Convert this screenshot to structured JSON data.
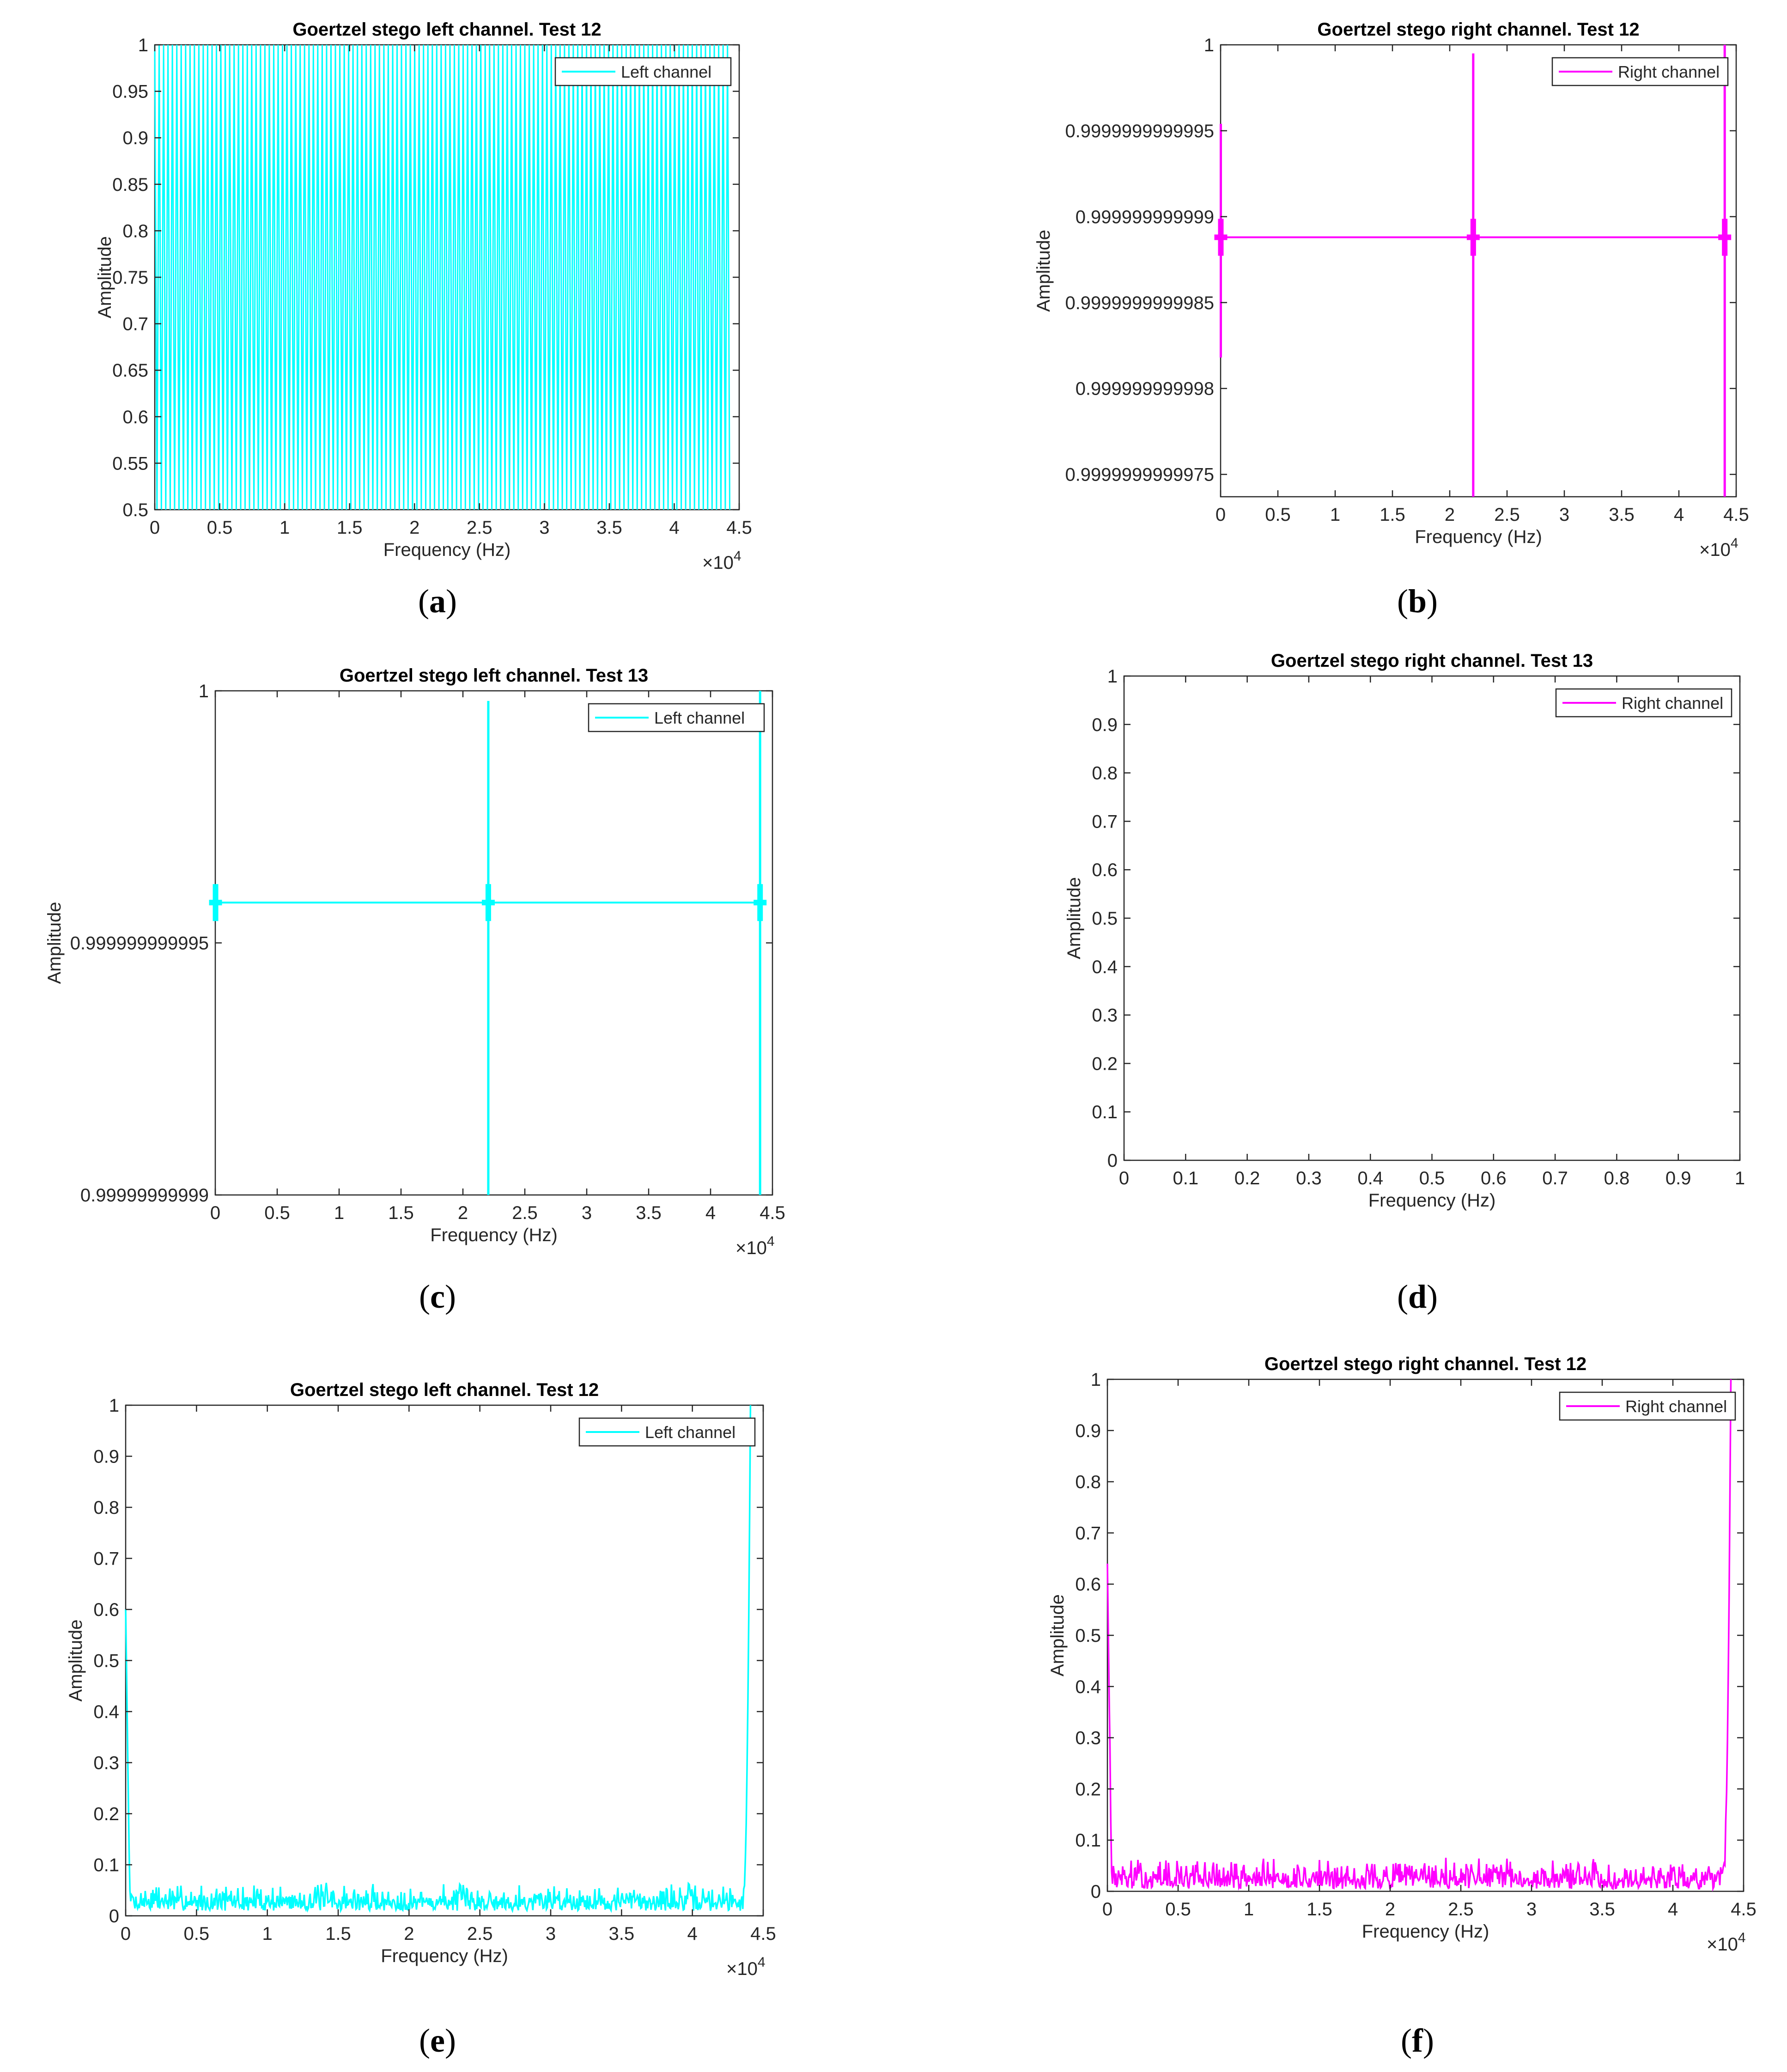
{
  "colors": {
    "left": "#00ffff",
    "right": "#ff00ff",
    "axis": "#262626",
    "text": "#262626"
  },
  "captions": [
    "(a)",
    "(b)",
    "(c)",
    "(d)",
    "(e)",
    "(f)"
  ],
  "captions_letter": [
    "a",
    "b",
    "c",
    "d",
    "e",
    "f"
  ],
  "chart_data": [
    {
      "id": "a",
      "type": "line",
      "title": "Goertzel stego left channel. Test 12",
      "xlabel": "Frequency (Hz)",
      "ylabel": "Amplitude",
      "xlim": [
        0,
        45000
      ],
      "ylim": [
        0.5,
        1
      ],
      "xticks": [
        0,
        5000,
        10000,
        15000,
        20000,
        25000,
        30000,
        35000,
        40000,
        45000
      ],
      "xtick_labels": [
        "0",
        "0.5",
        "1",
        "1.5",
        "2",
        "2.5",
        "3",
        "3.5",
        "4",
        "4.5"
      ],
      "x_multiplier": "×10^4",
      "yticks": [
        0.5,
        0.55,
        0.6,
        0.65,
        0.7,
        0.75,
        0.8,
        0.85,
        0.9,
        0.95,
        1
      ],
      "ytick_labels": [
        "0.5",
        "0.55",
        "0.6",
        "0.65",
        "0.7",
        "0.75",
        "0.8",
        "0.85",
        "0.9",
        "0.95",
        "1"
      ],
      "legend": "top-right",
      "series": [
        {
          "name": "Left channel",
          "color": "left",
          "pattern": "oscillation",
          "x_end": 44100,
          "low": 0.5,
          "high": 1,
          "cycles": 130
        }
      ]
    },
    {
      "id": "b",
      "type": "line",
      "title": "Goertzel stego right channel. Test 12",
      "xlabel": "Frequency (Hz)",
      "ylabel": "Amplitude",
      "xlim": [
        0,
        45000
      ],
      "ylim": [
        0.99999999999737,
        1
      ],
      "xticks": [
        0,
        5000,
        10000,
        15000,
        20000,
        25000,
        30000,
        35000,
        40000,
        45000
      ],
      "xtick_labels": [
        "0",
        "0.5",
        "1",
        "1.5",
        "2",
        "2.5",
        "3",
        "3.5",
        "4",
        "4.5"
      ],
      "x_multiplier": "×10^4",
      "yticks": [
        0.9999999999975,
        0.999999999998,
        0.9999999999985,
        0.999999999999,
        0.9999999999995,
        1
      ],
      "ytick_labels": [
        "0.9999999999975",
        "0.999999999998",
        "0.9999999999985",
        "0.999999999999",
        "0.9999999999995",
        "1"
      ],
      "legend": "top-right",
      "series": [
        {
          "name": "Right channel",
          "color": "right",
          "pattern": "flat-spikes",
          "x_end": 44100,
          "baseline": 0.99999999999888,
          "spikes": [
            {
              "x": 22050,
              "top": 0.99999999999995,
              "bottom": 0.99999999999737
            },
            {
              "x": 44000,
              "top": 1.0,
              "bottom": 0.99999999999737
            },
            {
              "x": 20,
              "top": 0.99999999999954,
              "bottom": 0.99999999999818
            }
          ]
        }
      ]
    },
    {
      "id": "c",
      "type": "line",
      "title": "Goertzel stego left channel. Test 13",
      "xlabel": "Frequency (Hz)",
      "ylabel": "Amplitude",
      "xlim": [
        0,
        45000
      ],
      "ylim": [
        0.99999999999,
        1.0
      ],
      "xticks": [
        0,
        5000,
        10000,
        15000,
        20000,
        25000,
        30000,
        35000,
        40000,
        45000
      ],
      "xtick_labels": [
        "0",
        "0.5",
        "1",
        "1.5",
        "2",
        "2.5",
        "3",
        "3.5",
        "4",
        "4.5"
      ],
      "x_multiplier": "×10^4",
      "yticks": [
        0.99999999999,
        0.999999999995,
        1
      ],
      "ytick_labels": [
        "0.99999999999",
        "0.999999999995",
        "1"
      ],
      "legend": "top-right",
      "series": [
        {
          "name": "Left channel",
          "color": "left",
          "pattern": "flat-spikes",
          "x_end": 44100,
          "baseline": 0.9999999999958,
          "spikes": [
            {
              "x": 22050,
              "top": 0.9999999999998,
              "bottom": 0.99999999999
            },
            {
              "x": 44000,
              "top": 1.0,
              "bottom": 0.99999999999
            },
            {
              "x": 20,
              "top": 0.9999999999961,
              "bottom": 0.9999999999955
            }
          ]
        }
      ]
    },
    {
      "id": "d",
      "type": "line",
      "title": "Goertzel stego right channel. Test 13",
      "xlabel": "Frequency (Hz)",
      "ylabel": "Amplitude",
      "xlim": [
        0,
        1
      ],
      "ylim": [
        0,
        1
      ],
      "xticks": [
        0,
        0.1,
        0.2,
        0.3,
        0.4,
        0.5,
        0.6,
        0.7,
        0.8,
        0.9,
        1
      ],
      "xtick_labels": [
        "0",
        "0.1",
        "0.2",
        "0.3",
        "0.4",
        "0.5",
        "0.6",
        "0.7",
        "0.8",
        "0.9",
        "1"
      ],
      "x_multiplier": "",
      "yticks": [
        0,
        0.1,
        0.2,
        0.3,
        0.4,
        0.5,
        0.6,
        0.7,
        0.8,
        0.9,
        1
      ],
      "ytick_labels": [
        "0",
        "0.1",
        "0.2",
        "0.3",
        "0.4",
        "0.5",
        "0.6",
        "0.7",
        "0.8",
        "0.9",
        "1"
      ],
      "legend": "top-right",
      "series": [
        {
          "name": "Right channel",
          "color": "right",
          "pattern": "empty"
        }
      ]
    },
    {
      "id": "e",
      "type": "line",
      "title": "Goertzel stego left channel. Test 12",
      "xlabel": "Frequency (Hz)",
      "ylabel": "Amplitude",
      "xlim": [
        0,
        45000
      ],
      "ylim": [
        0,
        1
      ],
      "xticks": [
        0,
        5000,
        10000,
        15000,
        20000,
        25000,
        30000,
        35000,
        40000,
        45000
      ],
      "xtick_labels": [
        "0",
        "0.5",
        "1",
        "1.5",
        "2",
        "2.5",
        "3",
        "3.5",
        "4",
        "4.5"
      ],
      "x_multiplier": "×10^4",
      "yticks": [
        0,
        0.1,
        0.2,
        0.3,
        0.4,
        0.5,
        0.6,
        0.7,
        0.8,
        0.9,
        1
      ],
      "ytick_labels": [
        "0",
        "0.1",
        "0.2",
        "0.3",
        "0.4",
        "0.5",
        "0.6",
        "0.7",
        "0.8",
        "0.9",
        "1"
      ],
      "legend": "top-right",
      "series": [
        {
          "name": "Left channel",
          "color": "left",
          "pattern": "noise",
          "x_end": 44100,
          "noise_low": 0.01,
          "noise_high": 0.07,
          "start_peak": 0.6,
          "end_peak": 1.0,
          "seed": 7
        }
      ]
    },
    {
      "id": "f",
      "type": "line",
      "title": "Goertzel stego right channel. Test 12",
      "xlabel": "Frequency (Hz)",
      "ylabel": "Amplitude",
      "xlim": [
        0,
        45000
      ],
      "ylim": [
        0,
        1
      ],
      "xticks": [
        0,
        5000,
        10000,
        15000,
        20000,
        25000,
        30000,
        35000,
        40000,
        45000
      ],
      "xtick_labels": [
        "0",
        "0.5",
        "1",
        "1.5",
        "2",
        "2.5",
        "3",
        "3.5",
        "4",
        "4.5"
      ],
      "x_multiplier": "×10^4",
      "yticks": [
        0,
        0.1,
        0.2,
        0.3,
        0.4,
        0.5,
        0.6,
        0.7,
        0.8,
        0.9,
        1
      ],
      "ytick_labels": [
        "0",
        "0.1",
        "0.2",
        "0.3",
        "0.4",
        "0.5",
        "0.6",
        "0.7",
        "0.8",
        "0.9",
        "1"
      ],
      "legend": "top-right",
      "series": [
        {
          "name": "Right channel",
          "color": "right",
          "pattern": "noise",
          "x_end": 44100,
          "noise_low": 0.005,
          "noise_high": 0.07,
          "start_peak": 0.64,
          "end_peak": 1.0,
          "seed": 13
        }
      ]
    }
  ]
}
